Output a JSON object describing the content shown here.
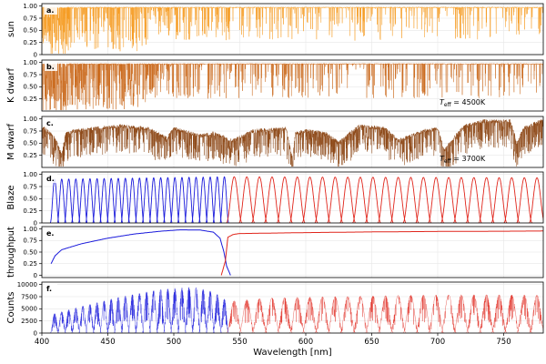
{
  "chart_data": {
    "type": "line",
    "xlabel": "Wavelength [nm]",
    "xlim": [
      400,
      780
    ],
    "xticks": [
      400,
      450,
      500,
      550,
      600,
      650,
      700,
      750
    ],
    "grid": true,
    "panels": [
      {
        "id": "a",
        "letter": "a.",
        "ylabel": "sun",
        "ylim": [
          0,
          1.05
        ],
        "yticks": [
          "0",
          "0.25",
          "0.50",
          "0.75",
          "1.00"
        ],
        "yticks_v": [
          0,
          0.25,
          0.5,
          0.75,
          1.0
        ],
        "annotation": "",
        "series": [
          {
            "kind": "absorption",
            "color": "#f59a1e",
            "continuum": 0.97,
            "density": 0.85,
            "depth": 0.9,
            "blue_boost": 1.6
          }
        ]
      },
      {
        "id": "b",
        "letter": "b.",
        "ylabel": "K dwarf",
        "ylim": [
          0,
          1.05
        ],
        "yticks": [
          "0.25",
          "0.50",
          "0.75",
          "1.00"
        ],
        "yticks_v": [
          0.25,
          0.5,
          0.75,
          1.0
        ],
        "annotation_main": "T",
        "annotation_sub": "eff",
        "annotation_value": " = 4500K",
        "series": [
          {
            "kind": "absorption",
            "color": "#c9681a",
            "continuum": 0.97,
            "density": 1.0,
            "depth": 0.95,
            "blue_boost": 1.8
          }
        ]
      },
      {
        "id": "c",
        "letter": "c.",
        "ylabel": "M dwarf",
        "ylim": [
          0,
          1.05
        ],
        "yticks": [
          "0.25",
          "0.50",
          "0.75",
          "1.00"
        ],
        "yticks_v": [
          0.25,
          0.5,
          0.75,
          1.0
        ],
        "annotation_main": "T",
        "annotation_sub": "eff",
        "annotation_value": " = 3700K",
        "series": [
          {
            "kind": "mdwarf",
            "color": "#8b4513"
          }
        ]
      },
      {
        "id": "d",
        "letter": "d.",
        "ylabel": "Blaze",
        "ylim": [
          0,
          1.05
        ],
        "yticks": [
          "0",
          "0.25",
          "0.50",
          "0.75",
          "1.00"
        ],
        "yticks_v": [
          0,
          0.25,
          0.5,
          0.75,
          1.0
        ],
        "series": [
          {
            "kind": "blaze",
            "color": "#1a1adb",
            "x_start": 407,
            "x_end": 541,
            "n_orders": 25,
            "peak_start": 0.9,
            "peak_end": 0.95
          },
          {
            "kind": "blaze",
            "color": "#e0251b",
            "x_start": 541,
            "x_end": 780,
            "n_orders": 25,
            "peak_start": 0.95,
            "peak_end": 0.93
          }
        ]
      },
      {
        "id": "e",
        "letter": "e.",
        "ylabel": "throughput",
        "ylim": [
          -0.05,
          1.05
        ],
        "yticks": [
          "0",
          "0.25",
          "0.50",
          "0.75",
          "1.00"
        ],
        "yticks_v": [
          0,
          0.25,
          0.5,
          0.75,
          1.0
        ],
        "series": [
          {
            "kind": "throughput_blue",
            "color": "#1a1adb",
            "points": [
              [
                407,
                0.25
              ],
              [
                410,
                0.42
              ],
              [
                415,
                0.55
              ],
              [
                430,
                0.68
              ],
              [
                450,
                0.8
              ],
              [
                470,
                0.89
              ],
              [
                490,
                0.95
              ],
              [
                505,
                0.98
              ],
              [
                520,
                0.975
              ],
              [
                530,
                0.93
              ],
              [
                535,
                0.8
              ],
              [
                538,
                0.5
              ],
              [
                540,
                0.2
              ],
              [
                543,
                0.0
              ]
            ]
          },
          {
            "kind": "throughput_red",
            "color": "#e0251b",
            "points": [
              [
                536,
                0.0
              ],
              [
                539,
                0.3
              ],
              [
                541,
                0.82
              ],
              [
                545,
                0.88
              ],
              [
                550,
                0.9
              ],
              [
                600,
                0.92
              ],
              [
                650,
                0.935
              ],
              [
                700,
                0.945
              ],
              [
                750,
                0.95
              ],
              [
                780,
                0.955
              ]
            ]
          }
        ]
      },
      {
        "id": "f",
        "letter": "f.",
        "ylabel": "Counts",
        "ylim": [
          0,
          10500
        ],
        "yticks": [
          "0",
          "2500",
          "5000",
          "7500",
          "10000"
        ],
        "yticks_v": [
          0,
          2500,
          5000,
          7500,
          10000
        ],
        "series": [
          {
            "kind": "counts",
            "color": "#1a1adb",
            "x_start": 407,
            "x_end": 541,
            "n_orders": 25,
            "peaks": [
              [
                407,
                3800
              ],
              [
                430,
                5500
              ],
              [
                460,
                7500
              ],
              [
                490,
                9000
              ],
              [
                515,
                9500
              ],
              [
                530,
                8500
              ],
              [
                541,
                6500
              ]
            ]
          },
          {
            "kind": "counts",
            "color": "#e0251b",
            "x_start": 541,
            "x_end": 780,
            "n_orders": 25,
            "peaks": [
              [
                541,
                6500
              ],
              [
                570,
                7200
              ],
              [
                620,
                7500
              ],
              [
                680,
                7800
              ],
              [
                730,
                7900
              ],
              [
                780,
                7800
              ]
            ]
          }
        ]
      }
    ]
  }
}
